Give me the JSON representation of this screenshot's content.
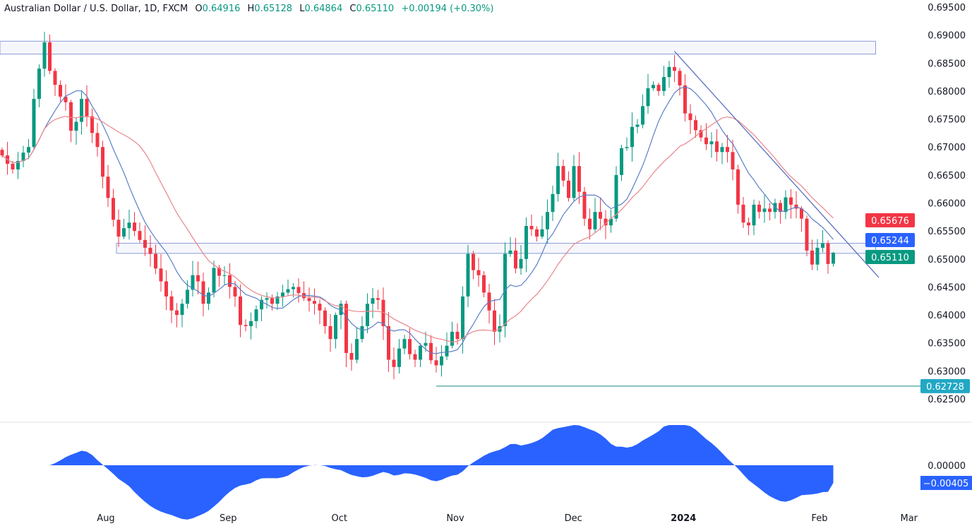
{
  "header": {
    "symbol": "Australian Dollar / U.S. Dollar, 1D, FXCM",
    "open_label": "O",
    "open": "0.64916",
    "high_label": "H",
    "high": "0.65128",
    "low_label": "L",
    "low": "0.64864",
    "close_label": "C",
    "close": "0.65110",
    "change": "+0.00194 (+0.30%)"
  },
  "colors": {
    "up": "#089981",
    "down": "#f23645",
    "fast_ma": "#5b7fc7",
    "slow_ma": "#e8868b",
    "oscillator": "#2962ff",
    "trendline": "#5b6fc0",
    "zone": "#8a9bd6",
    "support_line": "#138a80"
  },
  "chart_data": {
    "type": "candlestick",
    "title": "Australian Dollar / U.S. Dollar, 1D, FXCM",
    "ylim": [
      0.625,
      0.695
    ],
    "y_ticks": [
      "0.69500",
      "0.69000",
      "0.68500",
      "0.68000",
      "0.67500",
      "0.67000",
      "0.66500",
      "0.66000",
      "0.65500",
      "0.65000",
      "0.64500",
      "0.64000",
      "0.63500",
      "0.63000",
      "0.62500"
    ],
    "x_ticks": [
      {
        "label": "Aug",
        "index": 19.6,
        "bold": false
      },
      {
        "label": "Sep",
        "index": 42.7,
        "bold": false
      },
      {
        "label": "Oct",
        "index": 63.7,
        "bold": false
      },
      {
        "label": "Nov",
        "index": 85.6,
        "bold": false
      },
      {
        "label": "Dec",
        "index": 107.9,
        "bold": false
      },
      {
        "label": "2024",
        "index": 128.7,
        "bold": true
      },
      {
        "label": "Feb",
        "index": 154.4,
        "bold": false
      },
      {
        "label": "Mar",
        "index": 171.3,
        "bold": false
      }
    ],
    "closes": [
      0.6685,
      0.667,
      0.666,
      0.6675,
      0.669,
      0.67,
      0.6786,
      0.684,
      0.6887,
      0.6836,
      0.6811,
      0.679,
      0.678,
      0.6729,
      0.6745,
      0.6786,
      0.6755,
      0.6725,
      0.67,
      0.6647,
      0.6609,
      0.657,
      0.654,
      0.6555,
      0.6565,
      0.655,
      0.6534,
      0.652,
      0.6509,
      0.6483,
      0.646,
      0.6433,
      0.6408,
      0.64,
      0.642,
      0.6445,
      0.6471,
      0.646,
      0.642,
      0.644,
      0.6484,
      0.647,
      0.6471,
      0.645,
      0.6433,
      0.6382,
      0.638,
      0.6389,
      0.641,
      0.6427,
      0.643,
      0.642,
      0.6433,
      0.644,
      0.6446,
      0.645,
      0.6439,
      0.643,
      0.6425,
      0.642,
      0.6408,
      0.638,
      0.6357,
      0.64,
      0.642,
      0.6332,
      0.632,
      0.6357,
      0.638,
      0.642,
      0.643,
      0.6427,
      0.638,
      0.632,
      0.6307,
      0.634,
      0.6357,
      0.633,
      0.632,
      0.6345,
      0.635,
      0.6319,
      0.631,
      0.6326,
      0.6345,
      0.637,
      0.6357,
      0.6433,
      0.6509,
      0.648,
      0.6471,
      0.644,
      0.6408,
      0.637,
      0.638,
      0.6509,
      0.6515,
      0.6483,
      0.65,
      0.6559,
      0.6553,
      0.654,
      0.6553,
      0.6584,
      0.6616,
      0.6666,
      0.664,
      0.6609,
      0.6666,
      0.662,
      0.6572,
      0.6553,
      0.6584,
      0.6572,
      0.656,
      0.6572,
      0.665,
      0.6698,
      0.67,
      0.6736,
      0.674,
      0.6773,
      0.6805,
      0.6811,
      0.68,
      0.6825,
      0.6843,
      0.6836,
      0.681,
      0.676,
      0.6748,
      0.673,
      0.6717,
      0.6705,
      0.671,
      0.6691,
      0.67,
      0.6691,
      0.666,
      0.6597,
      0.6565,
      0.656,
      0.6597,
      0.6584,
      0.659,
      0.6584,
      0.66,
      0.6584,
      0.661,
      0.6597,
      0.659,
      0.6572,
      0.6515,
      0.649,
      0.652,
      0.6528,
      0.6491,
      0.6511
    ],
    "last_candle": {
      "open": 0.64916,
      "high": 0.65128,
      "low": 0.64864,
      "close": 0.6511
    },
    "moving_averages": [
      {
        "color": "#5b7fc7",
        "period": 9,
        "last_label": "0.65244"
      },
      {
        "color": "#e8868b",
        "period": 21,
        "last_label": "0.65676"
      }
    ],
    "price_label": "0.65110",
    "zones": [
      {
        "from_index": 0,
        "to_index": 165,
        "low": 0.6866,
        "high": 0.6889
      },
      {
        "from_index": 22,
        "to_index": 165,
        "low": 0.651,
        "high": 0.6528
      }
    ],
    "trendline": {
      "start_index": 127,
      "start_price": 0.6871,
      "end_index": 165.6,
      "end_price": 0.6467
    },
    "horizontal_line": {
      "from_index": 82,
      "price": 0.62728,
      "label": "0.62728"
    },
    "oscillator": {
      "zero_label": "0.00000",
      "last_label": "−0.00405",
      "last_value": -0.00405
    }
  }
}
